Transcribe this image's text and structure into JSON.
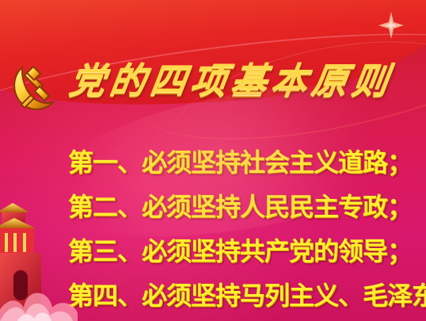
{
  "title": "党的四项基本原则",
  "principles": [
    {
      "text": "第一、必须坚持社会主义道路；"
    },
    {
      "text": "第二、必须坚持人民民主专政；"
    },
    {
      "text": "第三、必须坚持共产党的领导；"
    },
    {
      "text": "第四、必须坚持马列主义、毛泽东思想。"
    }
  ],
  "icons": {
    "emblem": "party-emblem-icon",
    "tower": "tiananmen-icon",
    "clouds": "cloud-decoration-icon",
    "sparkle": "sparkle-icon"
  },
  "colors": {
    "title": "#ffd84a",
    "principle_text": "#fff02d",
    "primary_red": "#d71822",
    "background_magenta": "#d9186d"
  }
}
